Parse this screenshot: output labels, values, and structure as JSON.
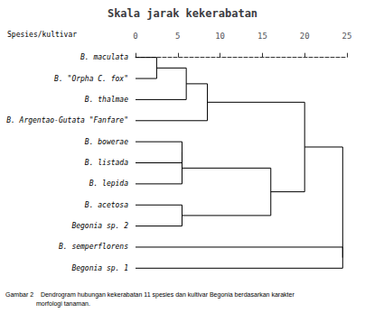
{
  "chart_data": {
    "type": "dendrogram",
    "title": "Skala jarak kekerabatan",
    "header": "Spesies/kultivar",
    "caption": [
      "Gambar 2    Dendrogram hubungan kekerabatan 11 spesies dan kultivar Begonia berdasarkan karakter",
      "morfologi tanaman."
    ],
    "tree": {
      "distance": 24.5,
      "children": [
        {
          "distance": 20.0,
          "children": [
            {
              "distance": 8.5,
              "children": [
                {
                  "distance": 6.0,
                  "children": [
                    {
                      "distance": 2.5,
                      "children": [
                        "B. maculata",
                        "B. \"Orpha C. fox\""
                      ]
                    },
                    "B. thalmae"
                  ]
                },
                "B. Argentao-Gutata \"Fanfare\""
              ]
            },
            {
              "distance": 16.0,
              "children": [
                {
                  "distance": 5.5,
                  "children": [
                    {
                      "distance": 5.5,
                      "children": [
                        "B. bowerae",
                        "B. listada"
                      ]
                    },
                    "B. lepida"
                  ]
                },
                {
                  "distance": 5.5,
                  "children": [
                    "B. acetosa",
                    "Begonia sp. 2"
                  ]
                }
              ]
            }
          ]
        },
        {
          "distance": 24.5,
          "children": [
            "B. semperflorens",
            "Begonia sp. 1"
          ]
        }
      ]
    },
    "xlim": [
      0,
      25
    ],
    "xticks": [
      0,
      5,
      10,
      15,
      20,
      25
    ],
    "grid": false,
    "color": "#000000"
  }
}
